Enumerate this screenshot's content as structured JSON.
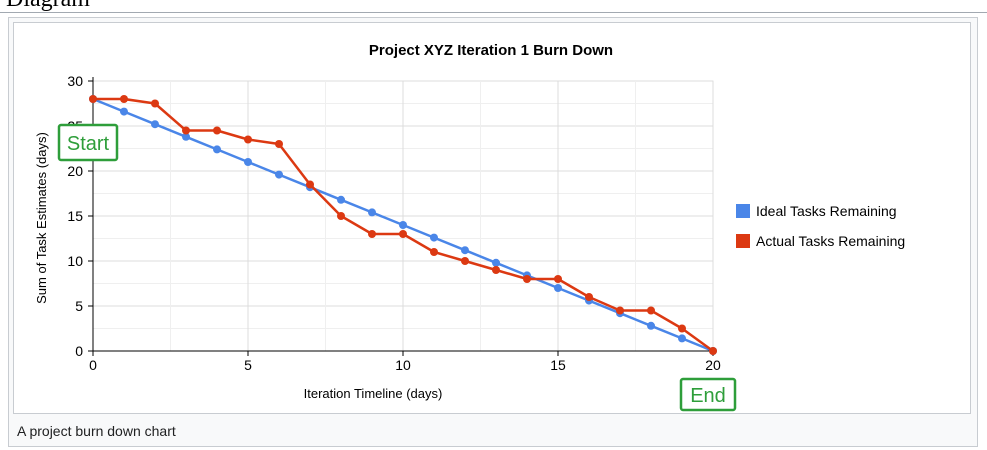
{
  "page": {
    "heading": "Diagram"
  },
  "figure": {
    "caption": "A project burn down chart"
  },
  "chart_data": {
    "type": "line",
    "title": "Project XYZ Iteration 1 Burn Down",
    "xlabel": "Iteration Timeline (days)",
    "ylabel": "Sum of Task Estimates (days)",
    "xlim": [
      0,
      20
    ],
    "ylim": [
      0,
      30
    ],
    "xticks": [
      0,
      5,
      10,
      15,
      20
    ],
    "yticks": [
      0,
      5,
      10,
      15,
      20,
      25,
      30
    ],
    "grid": true,
    "legend_position": "right",
    "x": [
      0,
      1,
      2,
      3,
      4,
      5,
      6,
      7,
      8,
      9,
      10,
      11,
      12,
      13,
      14,
      15,
      16,
      17,
      18,
      19,
      20
    ],
    "series": [
      {
        "name": "Ideal Tasks Remaining",
        "color": "#4a86e8",
        "values": [
          28,
          26.6,
          25.2,
          23.8,
          22.4,
          21,
          19.6,
          18.2,
          16.8,
          15.4,
          14,
          12.6,
          11.2,
          9.8,
          8.4,
          7,
          5.6,
          4.2,
          2.8,
          1.4,
          0
        ]
      },
      {
        "name": "Actual Tasks Remaining",
        "color": "#dc3912",
        "values": [
          28,
          28,
          27.5,
          24.5,
          24.5,
          23.5,
          23,
          18.5,
          15,
          13,
          13,
          11,
          10,
          9,
          8,
          8,
          6,
          4.5,
          4.5,
          2.5,
          0
        ]
      }
    ],
    "annotations": [
      {
        "text": "Start",
        "color": "#2e9e3a"
      },
      {
        "text": "End",
        "color": "#2e9e3a"
      }
    ]
  }
}
